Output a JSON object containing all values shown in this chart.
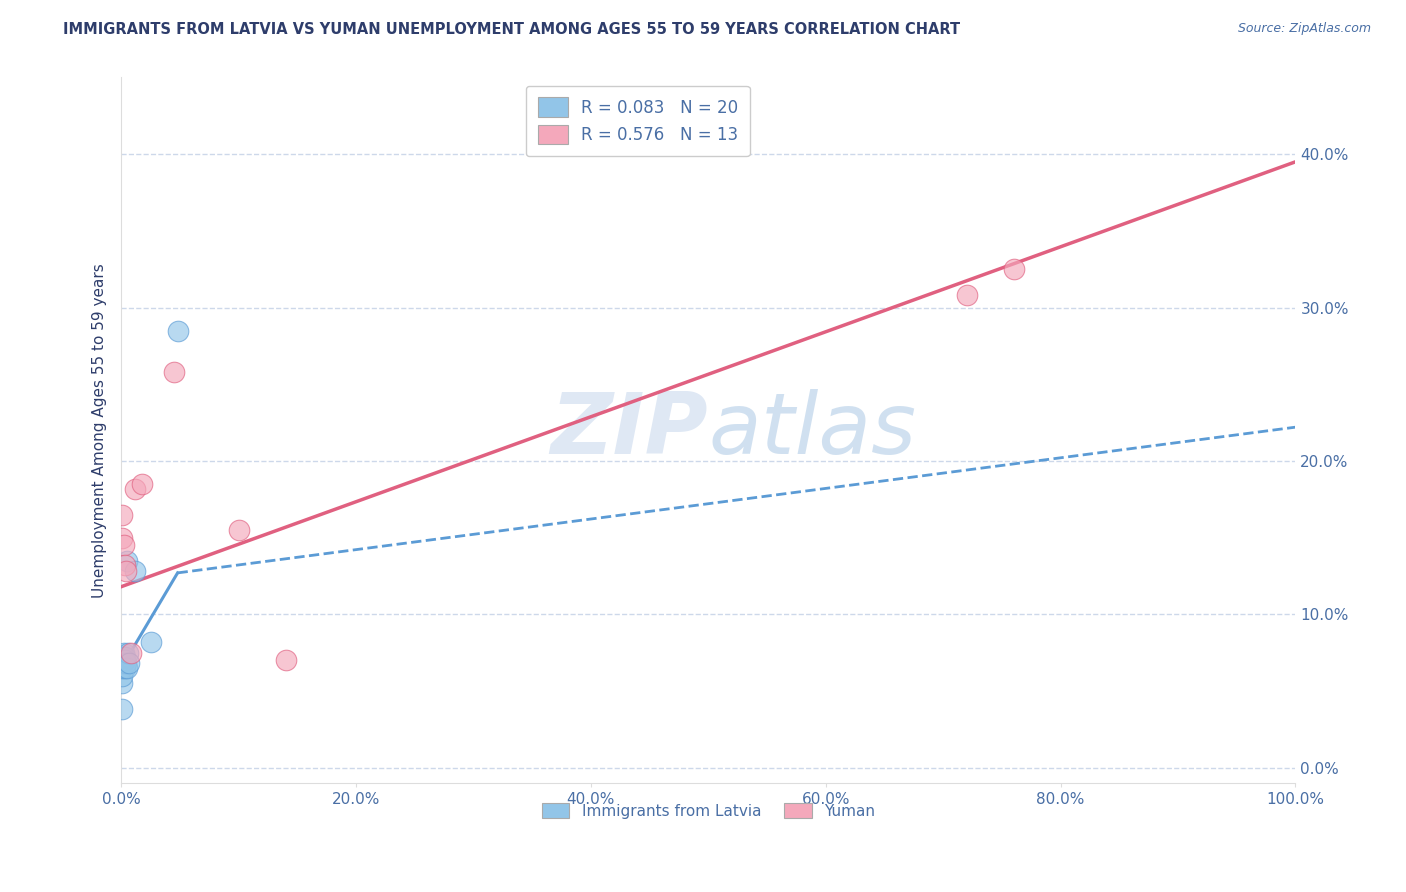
{
  "title": "IMMIGRANTS FROM LATVIA VS YUMAN UNEMPLOYMENT AMONG AGES 55 TO 59 YEARS CORRELATION CHART",
  "source": "Source: ZipAtlas.com",
  "ylabel": "Unemployment Among Ages 55 to 59 years",
  "watermark_zip": "ZIP",
  "watermark_atlas": "atlas",
  "blue_label": "Immigrants from Latvia",
  "pink_label": "Yuman",
  "blue_R": 0.083,
  "blue_N": 20,
  "pink_R": 0.576,
  "pink_N": 13,
  "blue_color": "#92C5E8",
  "pink_color": "#F4A8BB",
  "blue_line_color": "#5B9BD5",
  "pink_line_color": "#E06080",
  "grid_color": "#C8D4E8",
  "title_color": "#2E3D6B",
  "axis_color": "#4A6FA5",
  "label_color": "#2E3D6B",
  "background_color": "#FFFFFF",
  "xlim": [
    0.0,
    1.0
  ],
  "ylim": [
    -0.01,
    0.45
  ],
  "xticks": [
    0.0,
    0.2,
    0.4,
    0.6,
    0.8,
    1.0
  ],
  "yticks": [
    0.0,
    0.1,
    0.2,
    0.3,
    0.4
  ],
  "blue_scatter_x": [
    0.0003,
    0.0005,
    0.0008,
    0.001,
    0.0012,
    0.0015,
    0.002,
    0.002,
    0.0025,
    0.003,
    0.003,
    0.0035,
    0.004,
    0.005,
    0.005,
    0.006,
    0.007,
    0.012,
    0.025,
    0.048
  ],
  "blue_scatter_y": [
    0.038,
    0.055,
    0.06,
    0.065,
    0.068,
    0.072,
    0.07,
    0.075,
    0.072,
    0.065,
    0.072,
    0.07,
    0.068,
    0.065,
    0.135,
    0.075,
    0.068,
    0.128,
    0.082,
    0.285
  ],
  "pink_scatter_x": [
    0.0005,
    0.001,
    0.002,
    0.003,
    0.004,
    0.008,
    0.012,
    0.018,
    0.045,
    0.1,
    0.14,
    0.72,
    0.76
  ],
  "pink_scatter_y": [
    0.165,
    0.15,
    0.145,
    0.132,
    0.128,
    0.075,
    0.182,
    0.185,
    0.258,
    0.155,
    0.07,
    0.308,
    0.325
  ],
  "blue_trend_x0": 0.0,
  "blue_trend_x1": 0.048,
  "blue_trend_x2": 1.0,
  "blue_trend_y0": 0.065,
  "blue_trend_y1": 0.127,
  "blue_trend_y2": 0.222,
  "pink_trend_x0": 0.0,
  "pink_trend_x1": 1.0,
  "pink_trend_y0": 0.118,
  "pink_trend_y1": 0.395
}
